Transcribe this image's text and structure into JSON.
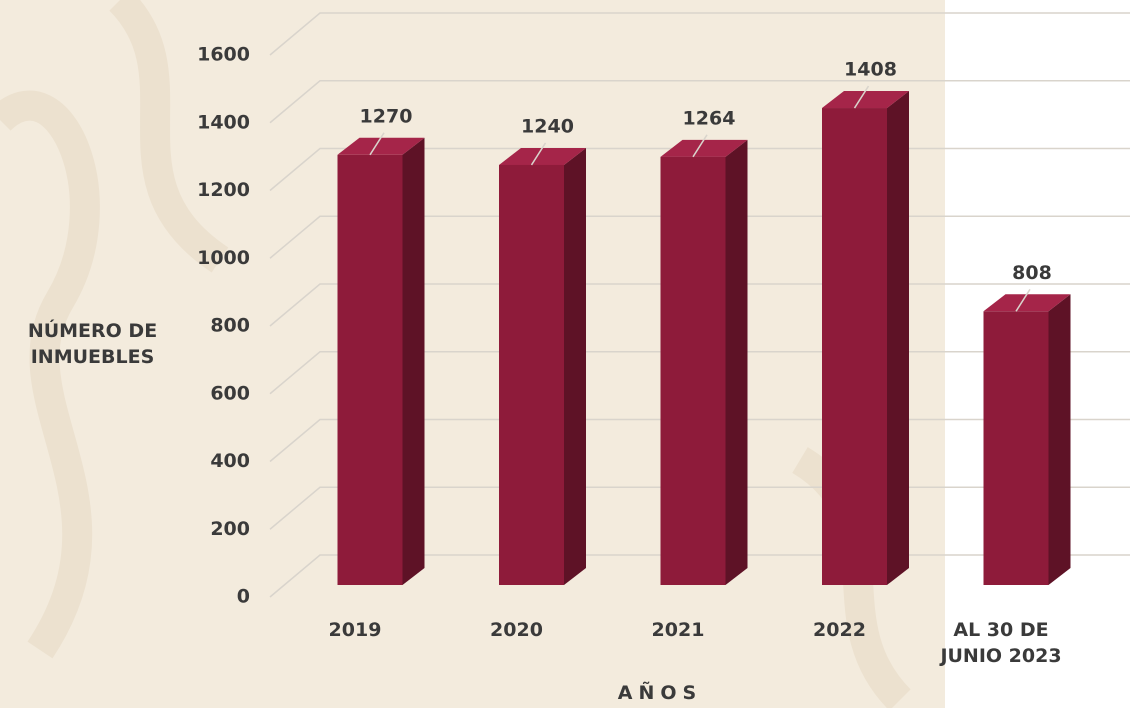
{
  "chart_data": {
    "type": "bar3d",
    "x_label": "AÑOS",
    "y_label": "NÚMERO DE\nINMUEBLES",
    "categories": [
      "2019",
      "2020",
      "2021",
      "2022",
      "AL 30 DE\nJUNIO 2023"
    ],
    "values": [
      1270,
      1240,
      1264,
      1408,
      808
    ],
    "color": "#8e1b3a",
    "ylim": [
      0,
      1600
    ],
    "yticks": [
      0,
      200,
      400,
      600,
      800,
      1000,
      1200,
      1400,
      1600
    ],
    "grid": true
  }
}
